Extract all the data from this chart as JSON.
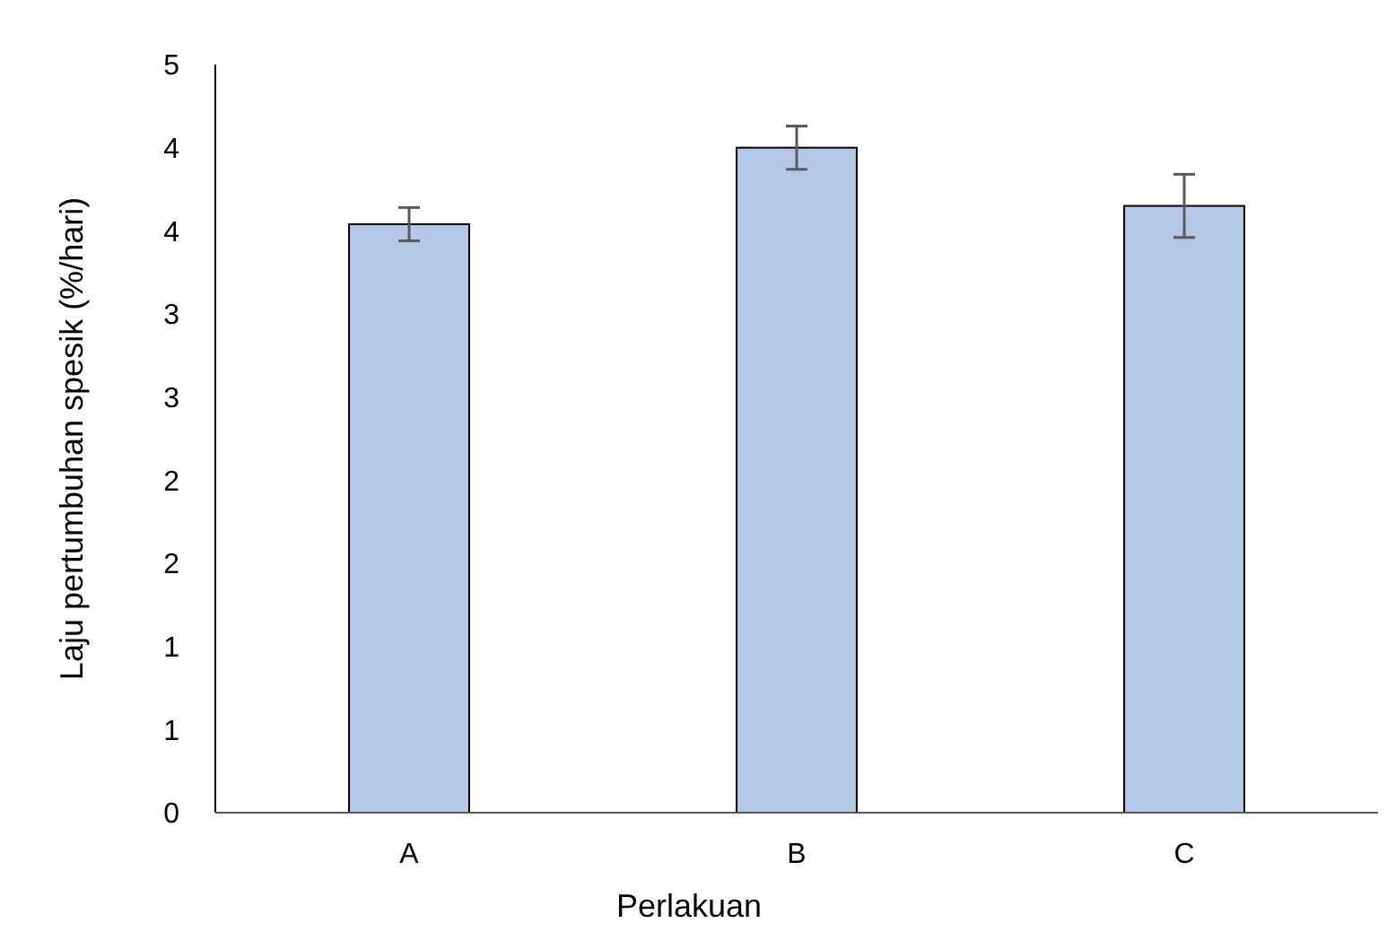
{
  "chart_data": {
    "type": "bar",
    "xlabel": "Perlakuan",
    "ylabel": "Laju pertumbuhan spesik (%/hari)",
    "categories": [
      "A",
      "B",
      "C"
    ],
    "values": [
      3.54,
      4.0,
      3.65
    ],
    "errors": [
      0.1,
      0.13,
      0.19
    ],
    "color": "#b4c7e7",
    "ylim": [
      0,
      4.5
    ],
    "yticks": [
      0,
      {
        "value": 0.5,
        "label": "1"
      },
      1,
      {
        "value": 1.5,
        "label": "2"
      },
      2,
      {
        "value": 2.5,
        "label": "3"
      },
      3,
      {
        "value": 3.5,
        "label": "4"
      },
      4,
      {
        "value": 4.5,
        "label": "5"
      }
    ],
    "grid": false
  }
}
